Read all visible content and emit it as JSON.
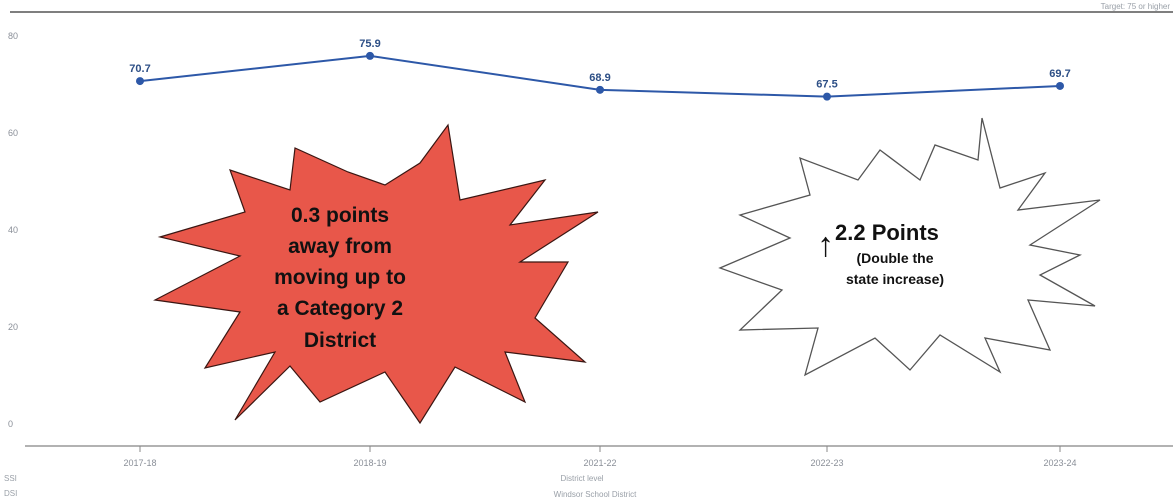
{
  "top_right_note": "Target: 75 or higher",
  "chart_data": {
    "type": "line",
    "x": [
      "2017-18",
      "2018-19",
      "2021-22",
      "2022-23",
      "2023-24"
    ],
    "series": [
      {
        "values": [
          70.7,
          75.9,
          68.9,
          67.5,
          69.7
        ]
      }
    ],
    "data_labels": [
      "70.7",
      "75.9",
      "68.9",
      "67.5",
      "69.7"
    ],
    "yticks": [
      "80",
      "60",
      "40",
      "20",
      "0"
    ],
    "ylim": [
      0,
      80
    ],
    "xlabel": "District level",
    "footer": "Windsor School District",
    "left_bottom_labels": [
      "SSI",
      "DSI"
    ],
    "line_color": "#2d58a8",
    "grid": false
  },
  "callouts": {
    "red_burst": {
      "lines": [
        "0.3 points",
        "away from",
        "moving up to",
        "a Category 2",
        "District"
      ],
      "fill": "#e8574a"
    },
    "white_burst": {
      "arrow": "↑",
      "headline": "2.2 Points",
      "sub_lines": [
        "(Double the",
        "state increase)"
      ]
    }
  }
}
